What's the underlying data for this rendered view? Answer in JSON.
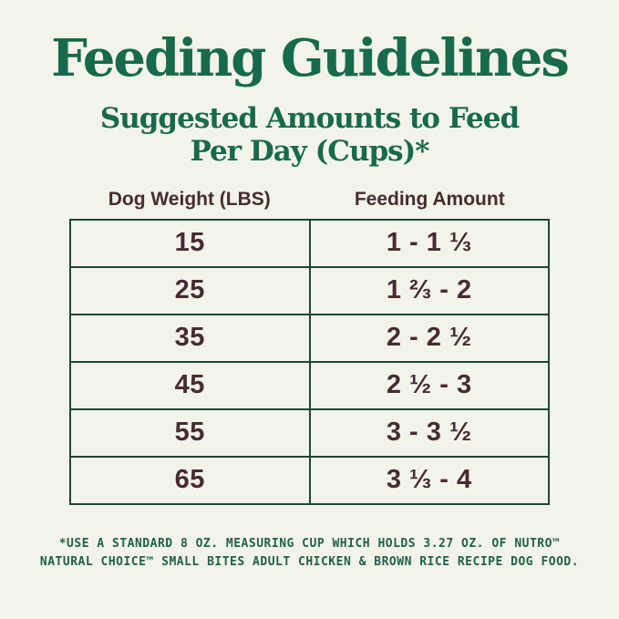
{
  "colors": {
    "background": "#f2f4ea",
    "heading_green": "#176a4b",
    "table_border_green": "#1d4735",
    "text_maroon": "#472b33",
    "footnote_green": "#20604a"
  },
  "header": {
    "title": "Feeding Guidelines",
    "subtitle_line1": "Suggested Amounts to Feed",
    "subtitle_line2": "Per Day (Cups)*"
  },
  "table": {
    "headers": [
      "Dog Weight (LBS)",
      "Feeding Amount"
    ],
    "rows": [
      {
        "weight": "15",
        "amount": "1 - 1 ⅓"
      },
      {
        "weight": "25",
        "amount": "1 ⅔ - 2"
      },
      {
        "weight": "35",
        "amount": "2 - 2 ½"
      },
      {
        "weight": "45",
        "amount": "2 ½ - 3"
      },
      {
        "weight": "55",
        "amount": "3 - 3 ½"
      },
      {
        "weight": "65",
        "amount": "3 ⅓ - 4"
      }
    ]
  },
  "chart_data": {
    "type": "table",
    "title": "Feeding Guidelines",
    "subtitle": "Suggested Amounts to Feed Per Day (Cups)*",
    "columns": [
      "Dog Weight (LBS)",
      "Feeding Amount"
    ],
    "rows": [
      [
        "15",
        "1 - 1 ⅓"
      ],
      [
        "25",
        "1 ⅔ - 2"
      ],
      [
        "35",
        "2 - 2 ½"
      ],
      [
        "45",
        "2 ½ - 3"
      ],
      [
        "55",
        "3 - 3 ½"
      ],
      [
        "65",
        "3 ⅓ - 4"
      ]
    ]
  },
  "footnote": {
    "line1": "*USE A STANDARD 8 OZ. MEASURING CUP WHICH HOLDS 3.27 OZ. OF NUTRO™",
    "line2": "NATURAL CHOICE™ SMALL BITES ADULT CHICKEN & BROWN RICE RECIPE DOG FOOD."
  }
}
